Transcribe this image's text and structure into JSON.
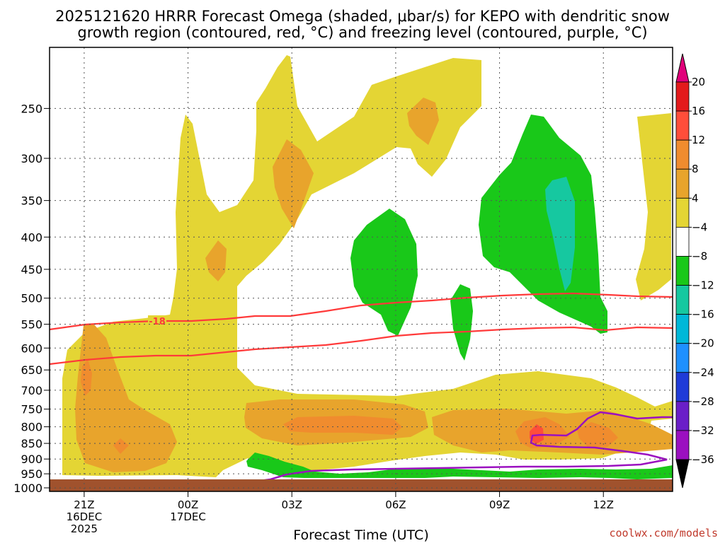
{
  "chart_data": {
    "type": "contour",
    "title_line1": "2025121620 HRRR Forecast Omega (shaded, μbar/s) for KEPO with dendritic snow",
    "title_line2": "growth region (contoured, red, °C) and freezing level (contoured, purple, °C)",
    "xlabel": "Forecast Time (UTC)",
    "credit": "coolwx.com/models",
    "y_ticks": [
      250,
      300,
      350,
      400,
      450,
      500,
      550,
      600,
      650,
      700,
      750,
      800,
      850,
      900,
      950,
      1000
    ],
    "y_range_hpa": [
      200,
      1013
    ],
    "x_ticks": [
      {
        "label": "21Z",
        "sub1": "16DEC",
        "sub2": "2025",
        "hour": 21
      },
      {
        "label": "00Z",
        "sub1": "17DEC",
        "sub2": "",
        "hour": 24
      },
      {
        "label": "03Z",
        "sub1": "",
        "sub2": "",
        "hour": 27
      },
      {
        "label": "06Z",
        "sub1": "",
        "sub2": "",
        "hour": 30
      },
      {
        "label": "09Z",
        "sub1": "",
        "sub2": "",
        "hour": 33
      },
      {
        "label": "12Z",
        "sub1": "",
        "sub2": "",
        "hour": 36
      }
    ],
    "x_range_hours": [
      20,
      38
    ],
    "colorbar_levels": [
      "20",
      "16",
      "12",
      "8",
      "4",
      "−4",
      "−8",
      "−12",
      "−16",
      "−20",
      "−24",
      "−28",
      "−32",
      "−36"
    ],
    "colorbar_colors": [
      "#e31a1c",
      "#ff4e3a",
      "#f08c2e",
      "#e8a42c",
      "#e4d534",
      "#ffffff",
      "#19c819",
      "#16c8a0",
      "#00b8d8",
      "#1e90ff",
      "#1f3bd8",
      "#6a1ec8",
      "#9b10c0",
      "#a8a8a8",
      "#000000"
    ],
    "colorbar_top_color": "#e0007a",
    "dgz_label": "-18",
    "colors": {
      "yellow": "#e4d534",
      "orange": "#e8a42c",
      "dark_orange": "#f08c2e",
      "red": "#ff4e3a",
      "green": "#19c819",
      "teal": "#16c8a0",
      "dgz_line": "#ff3a3a",
      "freezing_line": "#9b10c0",
      "ground": "#a0522d"
    }
  }
}
